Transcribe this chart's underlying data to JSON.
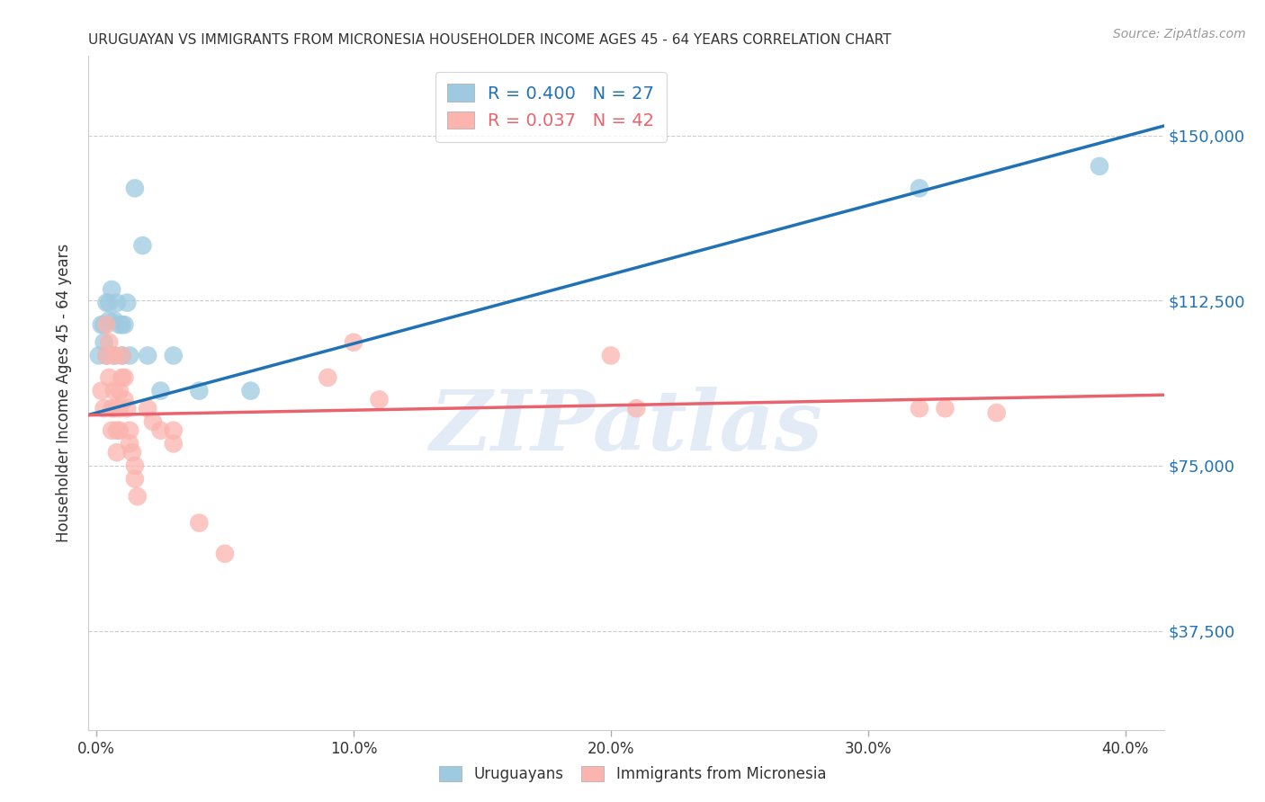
{
  "title": "URUGUAYAN VS IMMIGRANTS FROM MICRONESIA HOUSEHOLDER INCOME AGES 45 - 64 YEARS CORRELATION CHART",
  "source": "Source: ZipAtlas.com",
  "xlabel_ticks": [
    "0.0%",
    "10.0%",
    "20.0%",
    "30.0%",
    "40.0%"
  ],
  "xlabel_tick_vals": [
    0.0,
    0.1,
    0.2,
    0.3,
    0.4
  ],
  "ylabel_ticks": [
    "$37,500",
    "$75,000",
    "$112,500",
    "$150,000"
  ],
  "ylabel_tick_vals": [
    37500,
    75000,
    112500,
    150000
  ],
  "ylabel_label": "Householder Income Ages 45 - 64 years",
  "xlim": [
    -0.003,
    0.415
  ],
  "ylim": [
    15000,
    168000
  ],
  "blue_R": 0.4,
  "blue_N": 27,
  "pink_R": 0.037,
  "pink_N": 42,
  "blue_color": "#9ecae1",
  "pink_color": "#fbb4ae",
  "blue_line_color": "#2171b5",
  "pink_line_color": "#e8636d",
  "blue_scatter": [
    [
      0.001,
      100000
    ],
    [
      0.002,
      107000
    ],
    [
      0.003,
      107000
    ],
    [
      0.003,
      103000
    ],
    [
      0.004,
      100000
    ],
    [
      0.004,
      112000
    ],
    [
      0.005,
      108000
    ],
    [
      0.005,
      112000
    ],
    [
      0.006,
      115000
    ],
    [
      0.007,
      108000
    ],
    [
      0.007,
      100000
    ],
    [
      0.008,
      112000
    ],
    [
      0.009,
      107000
    ],
    [
      0.01,
      107000
    ],
    [
      0.01,
      100000
    ],
    [
      0.011,
      107000
    ],
    [
      0.012,
      112000
    ],
    [
      0.013,
      100000
    ],
    [
      0.015,
      138000
    ],
    [
      0.018,
      125000
    ],
    [
      0.02,
      100000
    ],
    [
      0.025,
      92000
    ],
    [
      0.03,
      100000
    ],
    [
      0.04,
      92000
    ],
    [
      0.06,
      92000
    ],
    [
      0.32,
      138000
    ],
    [
      0.39,
      143000
    ]
  ],
  "pink_scatter": [
    [
      0.002,
      92000
    ],
    [
      0.003,
      88000
    ],
    [
      0.004,
      100000
    ],
    [
      0.004,
      107000
    ],
    [
      0.005,
      103000
    ],
    [
      0.005,
      95000
    ],
    [
      0.006,
      88000
    ],
    [
      0.006,
      83000
    ],
    [
      0.007,
      100000
    ],
    [
      0.007,
      92000
    ],
    [
      0.007,
      88000
    ],
    [
      0.008,
      83000
    ],
    [
      0.008,
      78000
    ],
    [
      0.009,
      92000
    ],
    [
      0.009,
      88000
    ],
    [
      0.009,
      83000
    ],
    [
      0.01,
      100000
    ],
    [
      0.01,
      95000
    ],
    [
      0.011,
      95000
    ],
    [
      0.011,
      90000
    ],
    [
      0.012,
      88000
    ],
    [
      0.013,
      83000
    ],
    [
      0.013,
      80000
    ],
    [
      0.014,
      78000
    ],
    [
      0.015,
      75000
    ],
    [
      0.015,
      72000
    ],
    [
      0.016,
      68000
    ],
    [
      0.02,
      88000
    ],
    [
      0.022,
      85000
    ],
    [
      0.025,
      83000
    ],
    [
      0.03,
      83000
    ],
    [
      0.03,
      80000
    ],
    [
      0.04,
      62000
    ],
    [
      0.05,
      55000
    ],
    [
      0.09,
      95000
    ],
    [
      0.1,
      103000
    ],
    [
      0.11,
      90000
    ],
    [
      0.2,
      100000
    ],
    [
      0.21,
      88000
    ],
    [
      0.32,
      88000
    ],
    [
      0.33,
      88000
    ],
    [
      0.35,
      87000
    ]
  ],
  "watermark_text": "ZIPatlas",
  "background_color": "#ffffff",
  "grid_color": "#cccccc",
  "title_color": "#333333",
  "source_color": "#999999"
}
